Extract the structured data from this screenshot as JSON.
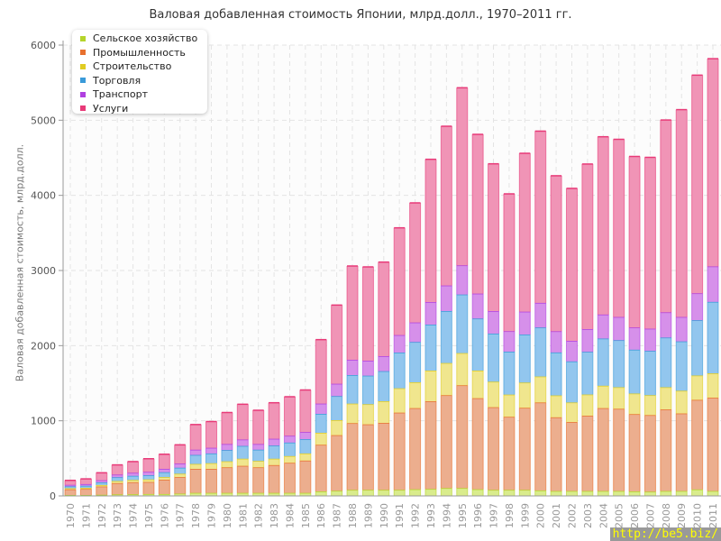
{
  "chart_data": {
    "type": "bar",
    "stacked": true,
    "title": "Валовая добавленная стоимость Японии, млрд.долл., 1970–2011 гг.",
    "xlabel": "",
    "ylabel": "Валовая добавленная стоимость, млрд.долл.",
    "ylim": [
      0,
      6000
    ],
    "yticks": [
      0,
      1000,
      2000,
      3000,
      4000,
      5000,
      6000
    ],
    "grid": true,
    "legend_position": "top-left",
    "categories": [
      "1970",
      "1971",
      "1972",
      "1973",
      "1974",
      "1975",
      "1976",
      "1977",
      "1978",
      "1979",
      "1980",
      "1981",
      "1982",
      "1983",
      "1984",
      "1985",
      "1986",
      "1987",
      "1988",
      "1989",
      "1990",
      "1991",
      "1992",
      "1993",
      "1994",
      "1995",
      "1996",
      "1997",
      "1998",
      "1999",
      "2000",
      "2001",
      "2002",
      "2003",
      "2004",
      "2005",
      "2006",
      "2007",
      "2008",
      "2009",
      "2010",
      "2011"
    ],
    "series": [
      {
        "name": "Сельское хозяйство",
        "color": "#b5d42a",
        "fill": "#d9ec8c",
        "values": [
          12,
          12,
          15,
          20,
          22,
          25,
          25,
          30,
          40,
          40,
          40,
          40,
          40,
          40,
          40,
          40,
          60,
          68,
          80,
          80,
          80,
          80,
          88,
          92,
          104,
          104,
          88,
          80,
          80,
          80,
          73,
          65,
          65,
          65,
          65,
          65,
          60,
          56,
          65,
          65,
          86,
          65
        ]
      },
      {
        "name": "Промышленность",
        "color": "#e8702e",
        "fill": "#ecae8e",
        "values": [
          75,
          80,
          110,
          150,
          160,
          160,
          190,
          220,
          320,
          320,
          340,
          360,
          340,
          370,
          400,
          430,
          620,
          740,
          888,
          872,
          892,
          1028,
          1080,
          1168,
          1236,
          1368,
          1212,
          1100,
          972,
          1092,
          1170,
          981,
          918,
          1002,
          1103,
          1094,
          1028,
          1019,
          1086,
          1032,
          1192,
          1242
        ]
      },
      {
        "name": "Строительство",
        "color": "#e0cc22",
        "fill": "#f0e68e",
        "values": [
          15,
          15,
          20,
          28,
          30,
          35,
          35,
          45,
          65,
          75,
          80,
          95,
          85,
          85,
          90,
          95,
          160,
          200,
          260,
          268,
          288,
          324,
          344,
          408,
          428,
          428,
          368,
          340,
          296,
          336,
          346,
          291,
          260,
          282,
          298,
          287,
          274,
          265,
          295,
          302,
          324,
          324
        ]
      },
      {
        "name": "Торговля",
        "color": "#3a9ad9",
        "fill": "#92c6ee",
        "values": [
          25,
          28,
          35,
          50,
          55,
          55,
          65,
          80,
          120,
          130,
          150,
          170,
          150,
          175,
          180,
          190,
          252,
          320,
          380,
          380,
          400,
          476,
          536,
          612,
          692,
          780,
          692,
          640,
          572,
          640,
          652,
          572,
          547,
          568,
          628,
          626,
          584,
          590,
          661,
          657,
          736,
          951
        ]
      },
      {
        "name": "Транспорт",
        "color": "#b040e0",
        "fill": "#d690ea",
        "values": [
          20,
          22,
          28,
          35,
          40,
          45,
          45,
          55,
          70,
          75,
          80,
          85,
          75,
          90,
          90,
          95,
          136,
          164,
          204,
          200,
          200,
          232,
          260,
          300,
          340,
          388,
          332,
          300,
          272,
          304,
          328,
          282,
          274,
          303,
          320,
          309,
          295,
          295,
          336,
          325,
          358,
          472
        ]
      },
      {
        "name": "Услуги",
        "color": "#e83a78",
        "fill": "#f094b6",
        "values": [
          60,
          70,
          100,
          130,
          150,
          175,
          195,
          250,
          335,
          350,
          420,
          470,
          450,
          480,
          520,
          560,
          852,
          1048,
          1248,
          1248,
          1252,
          1428,
          1592,
          1900,
          2120,
          2364,
          2120,
          1960,
          1828,
          2108,
          2286,
          2070,
          2029,
          2197,
          2366,
          2365,
          2277,
          2281,
          2560,
          2760,
          2904,
          2765
        ]
      }
    ]
  },
  "watermark": "http://be5.biz/"
}
